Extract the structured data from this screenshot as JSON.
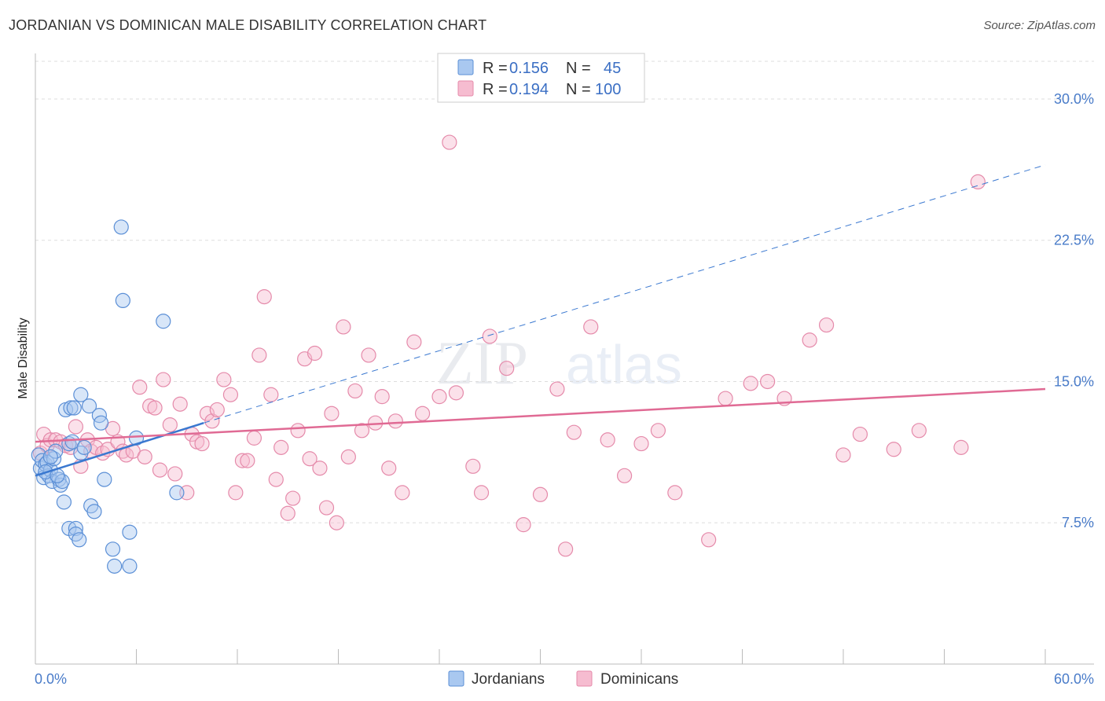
{
  "title": "JORDANIAN VS DOMINICAN MALE DISABILITY CORRELATION CHART",
  "source": "Source: ZipAtlas.com",
  "watermark": {
    "zip": "ZIP",
    "atlas": "atlas"
  },
  "colors": {
    "jordanian_fill": "#a9c8f0",
    "jordanian_stroke": "#5b8fd6",
    "jordanian_line": "#3a78d0",
    "dominican_fill": "#f6bcd0",
    "dominican_stroke": "#e58aaa",
    "dominican_line": "#e06a94",
    "tick_text": "#4a7cc9",
    "grid": "#dddddd"
  },
  "legend": {
    "jordanians": {
      "r_label": "R =",
      "r_value": "0.156",
      "n_label": "N =",
      "n_value": "45"
    },
    "dominicans": {
      "r_label": "R =",
      "r_value": "0.194",
      "n_label": "N =",
      "n_value": "100"
    }
  },
  "chart_data": {
    "type": "scatter",
    "title": "JORDANIAN VS DOMINICAN MALE DISABILITY CORRELATION CHART",
    "xlabel": "",
    "ylabel": "Male Disability",
    "xlim": [
      0,
      60
    ],
    "ylim": [
      0,
      32
    ],
    "x_tick_labels": [
      "0.0%",
      "60.0%"
    ],
    "y_ticks": [
      7.5,
      15.0,
      22.5,
      30.0
    ],
    "y_tick_labels": [
      "7.5%",
      "15.0%",
      "22.5%",
      "30.0%"
    ],
    "grid": true,
    "legend_position": "top-center",
    "series": [
      {
        "name": "Jordanians",
        "R": 0.156,
        "N": 45,
        "trend": {
          "x0": 0,
          "y0": 10.0,
          "x1": 10,
          "y1": 12.8,
          "extended_x1": 60,
          "extended_y1": 26.5
        },
        "points": [
          [
            0.2,
            11.1
          ],
          [
            0.3,
            10.4
          ],
          [
            0.4,
            10.8
          ],
          [
            0.5,
            9.9
          ],
          [
            0.6,
            10.6
          ],
          [
            0.7,
            10.7
          ],
          [
            0.8,
            10.0
          ],
          [
            0.9,
            10.3
          ],
          [
            1.0,
            9.7
          ],
          [
            1.1,
            10.9
          ],
          [
            1.2,
            11.3
          ],
          [
            1.4,
            9.8
          ],
          [
            1.5,
            9.5
          ],
          [
            1.6,
            9.7
          ],
          [
            1.7,
            8.6
          ],
          [
            1.8,
            13.5
          ],
          [
            2.0,
            11.7
          ],
          [
            2.1,
            13.6
          ],
          [
            2.2,
            11.8
          ],
          [
            2.3,
            13.6
          ],
          [
            2.0,
            7.2
          ],
          [
            2.4,
            7.2
          ],
          [
            2.4,
            6.9
          ],
          [
            2.6,
            6.6
          ],
          [
            2.7,
            14.3
          ],
          [
            2.7,
            11.2
          ],
          [
            3.2,
            13.7
          ],
          [
            3.3,
            8.4
          ],
          [
            3.5,
            8.1
          ],
          [
            3.8,
            13.2
          ],
          [
            3.9,
            12.8
          ],
          [
            4.1,
            9.8
          ],
          [
            4.6,
            6.1
          ],
          [
            4.7,
            5.2
          ],
          [
            5.1,
            23.2
          ],
          [
            5.2,
            19.3
          ],
          [
            5.6,
            7.0
          ],
          [
            5.6,
            5.2
          ],
          [
            6.0,
            12.0
          ],
          [
            7.6,
            18.2
          ],
          [
            8.4,
            9.1
          ],
          [
            0.6,
            10.2
          ],
          [
            1.3,
            10.0
          ],
          [
            0.9,
            11.0
          ],
          [
            2.9,
            11.5
          ]
        ]
      },
      {
        "name": "Dominicans",
        "R": 0.194,
        "N": 100,
        "trend": {
          "x0": 0,
          "y0": 11.8,
          "x1": 60,
          "y1": 14.6
        },
        "points": [
          [
            0.3,
            11.2
          ],
          [
            0.5,
            12.2
          ],
          [
            0.7,
            11.6
          ],
          [
            0.9,
            11.9
          ],
          [
            1.2,
            11.9
          ],
          [
            1.5,
            11.8
          ],
          [
            1.8,
            11.6
          ],
          [
            2.1,
            11.5
          ],
          [
            2.4,
            12.6
          ],
          [
            2.7,
            10.5
          ],
          [
            3.1,
            11.9
          ],
          [
            3.3,
            11.3
          ],
          [
            3.6,
            11.5
          ],
          [
            4.0,
            11.2
          ],
          [
            4.3,
            11.4
          ],
          [
            4.6,
            12.5
          ],
          [
            4.9,
            11.8
          ],
          [
            5.2,
            11.3
          ],
          [
            5.4,
            11.1
          ],
          [
            5.8,
            11.3
          ],
          [
            6.2,
            14.7
          ],
          [
            6.5,
            11.0
          ],
          [
            6.8,
            13.7
          ],
          [
            7.1,
            13.6
          ],
          [
            7.4,
            10.3
          ],
          [
            7.6,
            15.1
          ],
          [
            8.0,
            12.7
          ],
          [
            8.3,
            10.1
          ],
          [
            8.6,
            13.8
          ],
          [
            9.0,
            9.1
          ],
          [
            9.3,
            12.2
          ],
          [
            9.6,
            11.8
          ],
          [
            9.9,
            11.7
          ],
          [
            10.2,
            13.3
          ],
          [
            10.5,
            12.9
          ],
          [
            10.8,
            13.5
          ],
          [
            11.2,
            15.1
          ],
          [
            11.6,
            14.3
          ],
          [
            11.9,
            9.1
          ],
          [
            12.3,
            10.8
          ],
          [
            12.6,
            10.8
          ],
          [
            13.0,
            12.0
          ],
          [
            13.3,
            16.4
          ],
          [
            13.6,
            19.5
          ],
          [
            14.0,
            14.3
          ],
          [
            14.3,
            9.8
          ],
          [
            14.6,
            11.5
          ],
          [
            15.0,
            8.0
          ],
          [
            15.3,
            8.8
          ],
          [
            15.6,
            12.4
          ],
          [
            16.0,
            16.2
          ],
          [
            16.3,
            10.9
          ],
          [
            16.6,
            16.5
          ],
          [
            16.9,
            10.4
          ],
          [
            17.3,
            8.3
          ],
          [
            17.6,
            13.3
          ],
          [
            17.9,
            7.5
          ],
          [
            18.3,
            17.9
          ],
          [
            18.6,
            11.0
          ],
          [
            19.0,
            14.5
          ],
          [
            19.4,
            12.4
          ],
          [
            19.8,
            16.4
          ],
          [
            20.2,
            12.8
          ],
          [
            20.6,
            14.2
          ],
          [
            21.0,
            10.4
          ],
          [
            21.4,
            12.9
          ],
          [
            21.8,
            9.1
          ],
          [
            22.5,
            17.1
          ],
          [
            23.0,
            13.3
          ],
          [
            24.0,
            14.2
          ],
          [
            24.6,
            27.7
          ],
          [
            25.0,
            14.4
          ],
          [
            26.0,
            10.5
          ],
          [
            26.5,
            9.1
          ],
          [
            27.0,
            17.4
          ],
          [
            28.0,
            15.7
          ],
          [
            29.0,
            7.4
          ],
          [
            30.0,
            9.0
          ],
          [
            31.0,
            14.6
          ],
          [
            31.5,
            6.1
          ],
          [
            32.0,
            12.3
          ],
          [
            33.0,
            17.9
          ],
          [
            34.0,
            11.9
          ],
          [
            35.0,
            10.0
          ],
          [
            36.0,
            11.7
          ],
          [
            37.0,
            12.4
          ],
          [
            38.0,
            9.1
          ],
          [
            40.0,
            6.6
          ],
          [
            41.0,
            14.1
          ],
          [
            42.5,
            14.9
          ],
          [
            43.5,
            15.0
          ],
          [
            44.5,
            14.1
          ],
          [
            46.0,
            17.2
          ],
          [
            47.0,
            18.0
          ],
          [
            48.0,
            11.1
          ],
          [
            49.0,
            12.2
          ],
          [
            51.0,
            11.4
          ],
          [
            52.5,
            12.4
          ],
          [
            55.0,
            11.5
          ],
          [
            56.0,
            25.6
          ]
        ]
      }
    ]
  },
  "bottom_legend": {
    "jordanians": "Jordanians",
    "dominicans": "Dominicans"
  }
}
